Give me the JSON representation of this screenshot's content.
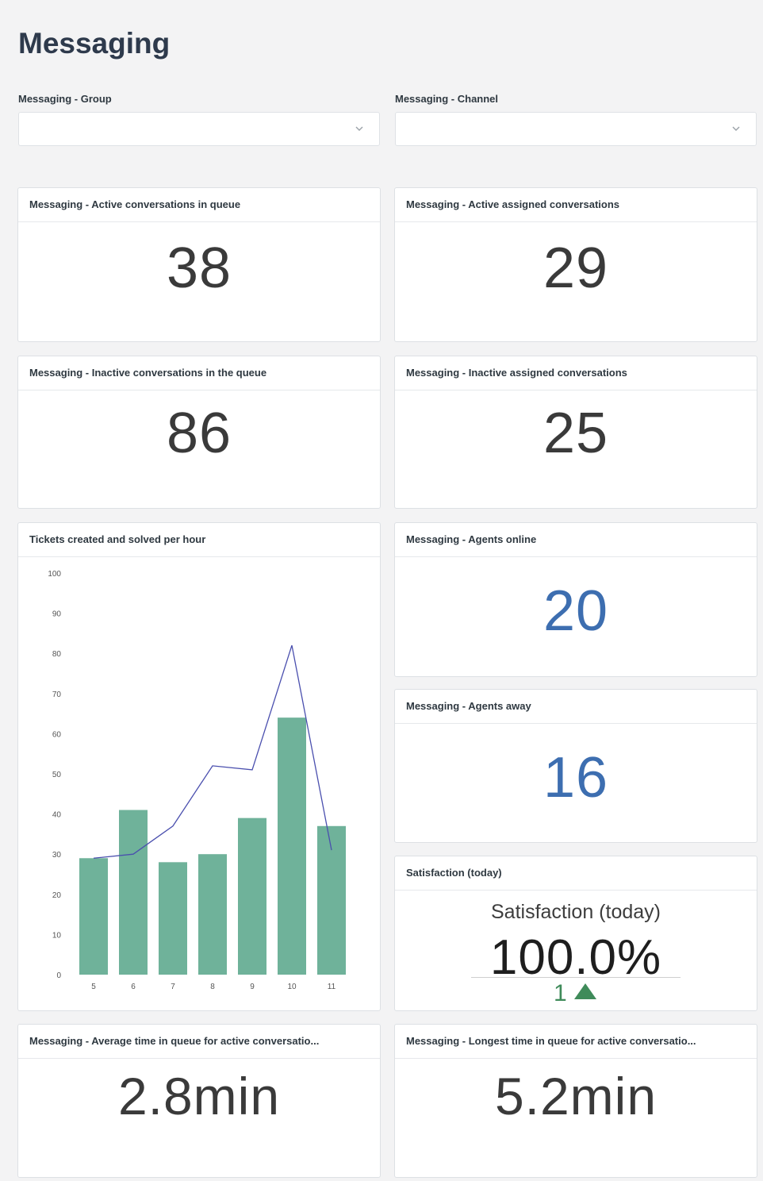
{
  "page": {
    "title": "Messaging"
  },
  "filters": {
    "group": {
      "label": "Messaging - Group",
      "value": ""
    },
    "channel": {
      "label": "Messaging - Channel",
      "value": ""
    }
  },
  "cards": {
    "active_queue": {
      "title": "Messaging - Active conversations in queue",
      "value": "38"
    },
    "active_assigned": {
      "title": "Messaging - Active assigned conversations",
      "value": "29"
    },
    "inactive_queue": {
      "title": "Messaging - Inactive conversations in the queue",
      "value": "86"
    },
    "inactive_assigned": {
      "title": "Messaging - Inactive assigned conversations",
      "value": "25"
    },
    "tickets_chart": {
      "title": "Tickets created and solved per hour"
    },
    "agents_online": {
      "title": "Messaging - Agents online",
      "value": "20"
    },
    "agents_away": {
      "title": "Messaging - Agents away",
      "value": "16"
    },
    "satisfaction": {
      "title": "Satisfaction (today)",
      "label": "Satisfaction (today)",
      "value": "100.0%",
      "delta": "1",
      "delta_direction": "up"
    },
    "avg_time": {
      "title": "Messaging - Average time in queue for active conversatio...",
      "value": "2.8min"
    },
    "longest_time": {
      "title": "Messaging - Longest time in queue for active conversatio...",
      "value": "5.2min"
    }
  },
  "colors": {
    "bar": "#6fb29a",
    "line": "#4a4fae",
    "metric_blue": "#3d6eb0",
    "delta_green": "#3f8b5a"
  },
  "icons": {
    "select_chevron": "chevron-down-icon",
    "delta_arrow": "triangle-up-icon"
  },
  "chart_data": {
    "type": "bar",
    "categories": [
      "5",
      "6",
      "7",
      "8",
      "9",
      "10",
      "11"
    ],
    "series": [
      {
        "type": "bar",
        "values": [
          29,
          41,
          28,
          30,
          39,
          64,
          37
        ]
      },
      {
        "type": "line",
        "values": [
          29,
          30,
          37,
          52,
          51,
          82,
          31
        ]
      }
    ],
    "yticks": [
      0,
      10,
      20,
      30,
      40,
      50,
      60,
      70,
      80,
      90,
      100
    ],
    "ylim": [
      0,
      100
    ],
    "grid": false
  }
}
